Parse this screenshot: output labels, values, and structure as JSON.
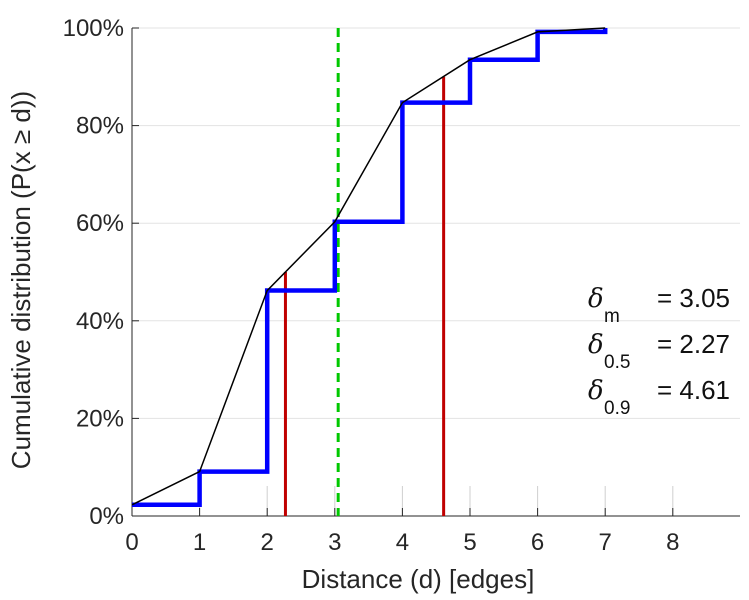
{
  "chart_data": {
    "type": "line",
    "xlabel": "Distance (d) [edges]",
    "ylabel": "Cumulative distribution (P(x ≥ d))",
    "xlim": [
      0,
      9
    ],
    "ylim": [
      0,
      100
    ],
    "grid": true,
    "x_ticks": [
      "0",
      "1",
      "2",
      "3",
      "4",
      "5",
      "6",
      "7",
      "8"
    ],
    "y_ticks": [
      "0%",
      "20%",
      "40%",
      "60%",
      "80%",
      "100%"
    ],
    "series": [
      {
        "name": "cumulative distribution (step)",
        "style": "step",
        "color": "#0000ff",
        "x": [
          0,
          1,
          2,
          3,
          4,
          5,
          6,
          7
        ],
        "y": [
          2.3,
          9.1,
          46.2,
          60.3,
          84.7,
          93.5,
          99.2,
          100
        ]
      },
      {
        "name": "cumulative distribution (interpolated)",
        "style": "line",
        "color": "#000000",
        "x": [
          0,
          1,
          2,
          3,
          4,
          5,
          6,
          7
        ],
        "y": [
          2.3,
          9.1,
          46.2,
          60.3,
          84.7,
          93.5,
          99.2,
          100
        ]
      }
    ],
    "markers": [
      {
        "name": "delta_m",
        "x": 3.05,
        "y_from": 0,
        "y_to": 100,
        "color": "#00c800",
        "style": "dashed"
      },
      {
        "name": "delta_0.5",
        "x": 2.27,
        "y_from": 0,
        "y_to": 50,
        "color": "#c00000",
        "style": "solid"
      },
      {
        "name": "delta_0.9",
        "x": 4.61,
        "y_from": 0,
        "y_to": 90,
        "color": "#c00000",
        "style": "solid"
      }
    ],
    "annotations": [
      {
        "symbol": "δ",
        "sub": "m",
        "text": "= 3.05"
      },
      {
        "symbol": "δ",
        "sub": "0.5",
        "text": "= 2.27"
      },
      {
        "symbol": "δ",
        "sub": "0.9",
        "text": "= 4.61"
      }
    ]
  }
}
